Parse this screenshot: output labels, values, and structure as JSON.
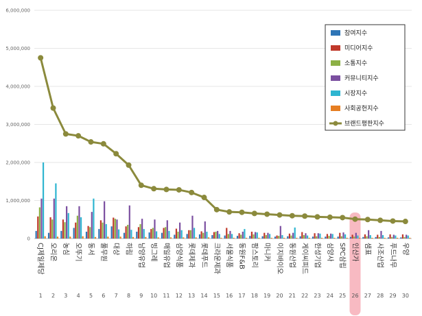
{
  "chart_data": {
    "type": "bar+line",
    "title": "",
    "ylim": [
      0,
      6000000
    ],
    "yticks": [
      "0",
      "1,000,000",
      "2,000,000",
      "3,000,000",
      "4,000,000",
      "5,000,000",
      "6,000,000"
    ],
    "ytick_values": [
      0,
      1000000,
      2000000,
      3000000,
      4000000,
      5000000,
      6000000
    ],
    "categories": [
      "CJ제일제당",
      "오리온",
      "농심",
      "오뚜기",
      "동서",
      "풀무원",
      "대상",
      "하림",
      "남양유업",
      "빙그레",
      "매일유업",
      "삼양식품",
      "롯데제과",
      "롯데푸드",
      "크라운제과",
      "서울식품",
      "동원F&B",
      "팜스토리",
      "마니커",
      "이지바이오",
      "동원산업",
      "게이씨피드",
      "한성기업",
      "삼양사",
      "SPC삼립",
      "인산가",
      "샘표",
      "사조산업",
      "푸드나무",
      "우양"
    ],
    "ranks": [
      "1",
      "2",
      "3",
      "4",
      "5",
      "6",
      "7",
      "8",
      "9",
      "10",
      "11",
      "12",
      "13",
      "14",
      "15",
      "16",
      "17",
      "18",
      "19",
      "20",
      "21",
      "22",
      "23",
      "24",
      "25",
      "26",
      "27",
      "28",
      "29",
      "30"
    ],
    "highlight_index": 25,
    "series": [
      {
        "name": "참여지수",
        "color": "#2e75b6",
        "kind": "bar",
        "values": [
          200000,
          150000,
          200000,
          280000,
          180000,
          250000,
          320000,
          150000,
          180000,
          160000,
          150000,
          100000,
          120000,
          110000,
          90000,
          80000,
          70000,
          70000,
          60000,
          50000,
          60000,
          60000,
          50000,
          50000,
          50000,
          40000,
          40000,
          40000,
          30000,
          30000
        ]
      },
      {
        "name": "미디어지수",
        "color": "#c0392b",
        "kind": "bar",
        "values": [
          580000,
          560000,
          500000,
          420000,
          330000,
          480000,
          550000,
          320000,
          300000,
          250000,
          280000,
          260000,
          220000,
          190000,
          170000,
          280000,
          140000,
          180000,
          150000,
          80000,
          130000,
          170000,
          140000,
          120000,
          150000,
          100000,
          110000,
          100000,
          110000,
          110000
        ]
      },
      {
        "name": "소통지수",
        "color": "#8cb045",
        "kind": "bar",
        "values": [
          820000,
          500000,
          430000,
          600000,
          300000,
          420000,
          520000,
          360000,
          380000,
          280000,
          300000,
          180000,
          220000,
          150000,
          180000,
          120000,
          100000,
          110000,
          90000,
          70000,
          80000,
          90000,
          60000,
          70000,
          60000,
          50000,
          60000,
          40000,
          40000,
          40000
        ]
      },
      {
        "name": "커뮤니티지수",
        "color": "#7b4fa0",
        "kind": "bar",
        "values": [
          1050000,
          1050000,
          850000,
          850000,
          700000,
          980000,
          500000,
          870000,
          520000,
          500000,
          480000,
          420000,
          600000,
          450000,
          200000,
          200000,
          180000,
          170000,
          150000,
          330000,
          150000,
          140000,
          140000,
          130000,
          160000,
          150000,
          220000,
          200000,
          100000,
          100000
        ]
      },
      {
        "name": "시장지수",
        "color": "#2eb5d0",
        "kind": "bar",
        "values": [
          2000000,
          1450000,
          670000,
          560000,
          1050000,
          380000,
          240000,
          230000,
          250000,
          190000,
          200000,
          220000,
          280000,
          180000,
          120000,
          120000,
          250000,
          160000,
          120000,
          90000,
          290000,
          80000,
          130000,
          120000,
          110000,
          80000,
          90000,
          90000,
          80000,
          80000
        ]
      },
      {
        "name": "사회공헌지수",
        "color": "#e67e22",
        "kind": "bar",
        "values": [
          60000,
          50000,
          50000,
          60000,
          40000,
          50000,
          50000,
          40000,
          40000,
          30000,
          30000,
          30000,
          30000,
          30000,
          20000,
          20000,
          20000,
          20000,
          20000,
          20000,
          20000,
          20000,
          20000,
          20000,
          20000,
          20000,
          20000,
          20000,
          20000,
          20000
        ]
      },
      {
        "name": "브랜드평판지수",
        "color": "#8b8a3c",
        "kind": "line",
        "values": [
          4750000,
          3430000,
          2750000,
          2700000,
          2540000,
          2490000,
          2230000,
          1930000,
          1400000,
          1310000,
          1290000,
          1280000,
          1210000,
          1080000,
          760000,
          700000,
          690000,
          660000,
          640000,
          620000,
          600000,
          590000,
          570000,
          560000,
          550000,
          510000,
          500000,
          480000,
          460000,
          450000
        ]
      }
    ]
  }
}
